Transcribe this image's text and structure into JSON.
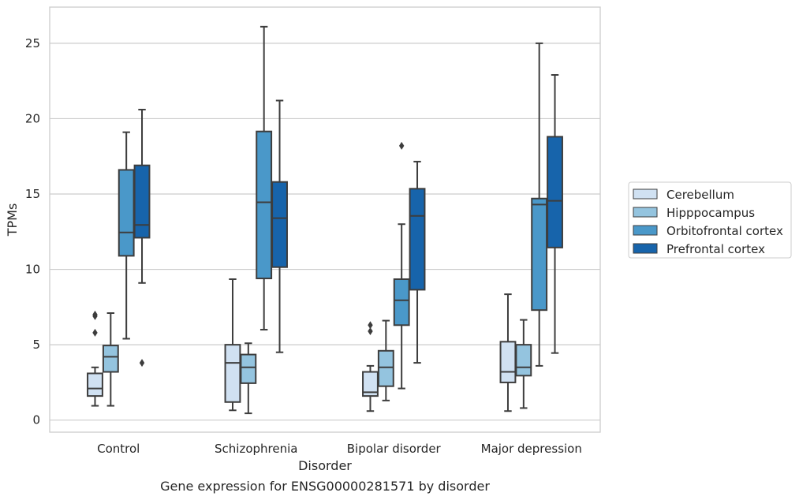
{
  "chart_data": {
    "type": "box",
    "title": "",
    "caption": "Gene expression for ENSG00000281571 by disorder",
    "xlabel": "Disorder",
    "ylabel": "TPMs",
    "ylim": [
      -0.8,
      27.4
    ],
    "yticks": [
      0,
      5,
      10,
      15,
      20,
      25
    ],
    "grid": "horizontal",
    "legend_position": "right",
    "categories": [
      "Control",
      "Schizophrenia",
      "Bipolar disorder",
      "Major depression"
    ],
    "series": [
      {
        "name": "Cerebellum",
        "color": "#d0e1f2",
        "boxes": [
          {
            "whislo": 0.95,
            "q1": 1.6,
            "med": 2.1,
            "q3": 3.1,
            "whishi": 3.5,
            "fliers": [
              5.8,
              6.9,
              7.0
            ]
          },
          {
            "whislo": 0.65,
            "q1": 1.2,
            "med": 3.8,
            "q3": 5.0,
            "whishi": 9.35,
            "fliers": []
          },
          {
            "whislo": 0.6,
            "q1": 1.6,
            "med": 1.85,
            "q3": 3.2,
            "whishi": 3.6,
            "fliers": [
              5.9,
              6.3
            ]
          },
          {
            "whislo": 0.6,
            "q1": 2.5,
            "med": 3.2,
            "q3": 5.2,
            "whishi": 8.35,
            "fliers": []
          }
        ]
      },
      {
        "name": "Hipppocampus",
        "color": "#94c4df",
        "boxes": [
          {
            "whislo": 0.95,
            "q1": 3.2,
            "med": 4.2,
            "q3": 4.95,
            "whishi": 7.1,
            "fliers": []
          },
          {
            "whislo": 0.45,
            "q1": 2.45,
            "med": 3.5,
            "q3": 4.35,
            "whishi": 5.1,
            "fliers": []
          },
          {
            "whislo": 1.3,
            "q1": 2.25,
            "med": 3.5,
            "q3": 4.6,
            "whishi": 6.6,
            "fliers": []
          },
          {
            "whislo": 0.8,
            "q1": 2.95,
            "med": 3.5,
            "q3": 5.0,
            "whishi": 6.65,
            "fliers": []
          }
        ]
      },
      {
        "name": "Orbitofrontal cortex",
        "color": "#4a98c9",
        "boxes": [
          {
            "whislo": 5.4,
            "q1": 10.9,
            "med": 12.45,
            "q3": 16.6,
            "whishi": 19.1,
            "fliers": []
          },
          {
            "whislo": 6.0,
            "q1": 9.4,
            "med": 14.45,
            "q3": 19.15,
            "whishi": 26.1,
            "fliers": []
          },
          {
            "whislo": 2.1,
            "q1": 6.3,
            "med": 7.95,
            "q3": 9.35,
            "whishi": 13.0,
            "fliers": [
              18.2
            ]
          },
          {
            "whislo": 3.6,
            "q1": 7.3,
            "med": 14.3,
            "q3": 14.7,
            "whishi": 25.0,
            "fliers": []
          }
        ]
      },
      {
        "name": "Prefrontal cortex",
        "color": "#1764ab",
        "boxes": [
          {
            "whislo": 9.1,
            "q1": 12.1,
            "med": 12.95,
            "q3": 16.9,
            "whishi": 20.6,
            "fliers": [
              3.8
            ]
          },
          {
            "whislo": 4.5,
            "q1": 10.15,
            "med": 13.4,
            "q3": 15.8,
            "whishi": 21.2,
            "fliers": []
          },
          {
            "whislo": 3.8,
            "q1": 8.65,
            "med": 13.55,
            "q3": 15.35,
            "whishi": 17.15,
            "fliers": []
          },
          {
            "whislo": 4.45,
            "q1": 11.45,
            "med": 14.55,
            "q3": 18.8,
            "whishi": 22.9,
            "fliers": []
          }
        ]
      }
    ]
  }
}
